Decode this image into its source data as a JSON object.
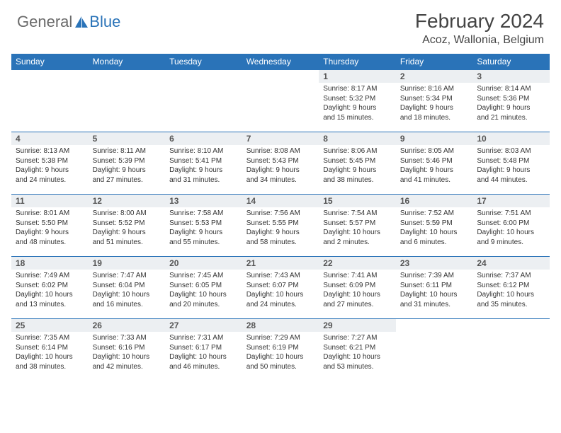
{
  "brand": {
    "general": "General",
    "blue": "Blue"
  },
  "header": {
    "title": "February 2024",
    "location": "Acoz, Wallonia, Belgium"
  },
  "colors": {
    "accent": "#2a73b8",
    "daynum_bg": "#eceff2",
    "text": "#333333",
    "logo_gray": "#6a6a6a"
  },
  "weekdays": [
    "Sunday",
    "Monday",
    "Tuesday",
    "Wednesday",
    "Thursday",
    "Friday",
    "Saturday"
  ],
  "rows": [
    [
      null,
      null,
      null,
      null,
      {
        "n": "1",
        "sr": "8:17 AM",
        "ss": "5:32 PM",
        "dl1": "Daylight: 9 hours",
        "dl2": "and 15 minutes."
      },
      {
        "n": "2",
        "sr": "8:16 AM",
        "ss": "5:34 PM",
        "dl1": "Daylight: 9 hours",
        "dl2": "and 18 minutes."
      },
      {
        "n": "3",
        "sr": "8:14 AM",
        "ss": "5:36 PM",
        "dl1": "Daylight: 9 hours",
        "dl2": "and 21 minutes."
      }
    ],
    [
      {
        "n": "4",
        "sr": "8:13 AM",
        "ss": "5:38 PM",
        "dl1": "Daylight: 9 hours",
        "dl2": "and 24 minutes."
      },
      {
        "n": "5",
        "sr": "8:11 AM",
        "ss": "5:39 PM",
        "dl1": "Daylight: 9 hours",
        "dl2": "and 27 minutes."
      },
      {
        "n": "6",
        "sr": "8:10 AM",
        "ss": "5:41 PM",
        "dl1": "Daylight: 9 hours",
        "dl2": "and 31 minutes."
      },
      {
        "n": "7",
        "sr": "8:08 AM",
        "ss": "5:43 PM",
        "dl1": "Daylight: 9 hours",
        "dl2": "and 34 minutes."
      },
      {
        "n": "8",
        "sr": "8:06 AM",
        "ss": "5:45 PM",
        "dl1": "Daylight: 9 hours",
        "dl2": "and 38 minutes."
      },
      {
        "n": "9",
        "sr": "8:05 AM",
        "ss": "5:46 PM",
        "dl1": "Daylight: 9 hours",
        "dl2": "and 41 minutes."
      },
      {
        "n": "10",
        "sr": "8:03 AM",
        "ss": "5:48 PM",
        "dl1": "Daylight: 9 hours",
        "dl2": "and 44 minutes."
      }
    ],
    [
      {
        "n": "11",
        "sr": "8:01 AM",
        "ss": "5:50 PM",
        "dl1": "Daylight: 9 hours",
        "dl2": "and 48 minutes."
      },
      {
        "n": "12",
        "sr": "8:00 AM",
        "ss": "5:52 PM",
        "dl1": "Daylight: 9 hours",
        "dl2": "and 51 minutes."
      },
      {
        "n": "13",
        "sr": "7:58 AM",
        "ss": "5:53 PM",
        "dl1": "Daylight: 9 hours",
        "dl2": "and 55 minutes."
      },
      {
        "n": "14",
        "sr": "7:56 AM",
        "ss": "5:55 PM",
        "dl1": "Daylight: 9 hours",
        "dl2": "and 58 minutes."
      },
      {
        "n": "15",
        "sr": "7:54 AM",
        "ss": "5:57 PM",
        "dl1": "Daylight: 10 hours",
        "dl2": "and 2 minutes."
      },
      {
        "n": "16",
        "sr": "7:52 AM",
        "ss": "5:59 PM",
        "dl1": "Daylight: 10 hours",
        "dl2": "and 6 minutes."
      },
      {
        "n": "17",
        "sr": "7:51 AM",
        "ss": "6:00 PM",
        "dl1": "Daylight: 10 hours",
        "dl2": "and 9 minutes."
      }
    ],
    [
      {
        "n": "18",
        "sr": "7:49 AM",
        "ss": "6:02 PM",
        "dl1": "Daylight: 10 hours",
        "dl2": "and 13 minutes."
      },
      {
        "n": "19",
        "sr": "7:47 AM",
        "ss": "6:04 PM",
        "dl1": "Daylight: 10 hours",
        "dl2": "and 16 minutes."
      },
      {
        "n": "20",
        "sr": "7:45 AM",
        "ss": "6:05 PM",
        "dl1": "Daylight: 10 hours",
        "dl2": "and 20 minutes."
      },
      {
        "n": "21",
        "sr": "7:43 AM",
        "ss": "6:07 PM",
        "dl1": "Daylight: 10 hours",
        "dl2": "and 24 minutes."
      },
      {
        "n": "22",
        "sr": "7:41 AM",
        "ss": "6:09 PM",
        "dl1": "Daylight: 10 hours",
        "dl2": "and 27 minutes."
      },
      {
        "n": "23",
        "sr": "7:39 AM",
        "ss": "6:11 PM",
        "dl1": "Daylight: 10 hours",
        "dl2": "and 31 minutes."
      },
      {
        "n": "24",
        "sr": "7:37 AM",
        "ss": "6:12 PM",
        "dl1": "Daylight: 10 hours",
        "dl2": "and 35 minutes."
      }
    ],
    [
      {
        "n": "25",
        "sr": "7:35 AM",
        "ss": "6:14 PM",
        "dl1": "Daylight: 10 hours",
        "dl2": "and 38 minutes."
      },
      {
        "n": "26",
        "sr": "7:33 AM",
        "ss": "6:16 PM",
        "dl1": "Daylight: 10 hours",
        "dl2": "and 42 minutes."
      },
      {
        "n": "27",
        "sr": "7:31 AM",
        "ss": "6:17 PM",
        "dl1": "Daylight: 10 hours",
        "dl2": "and 46 minutes."
      },
      {
        "n": "28",
        "sr": "7:29 AM",
        "ss": "6:19 PM",
        "dl1": "Daylight: 10 hours",
        "dl2": "and 50 minutes."
      },
      {
        "n": "29",
        "sr": "7:27 AM",
        "ss": "6:21 PM",
        "dl1": "Daylight: 10 hours",
        "dl2": "and 53 minutes."
      },
      null,
      null
    ]
  ]
}
